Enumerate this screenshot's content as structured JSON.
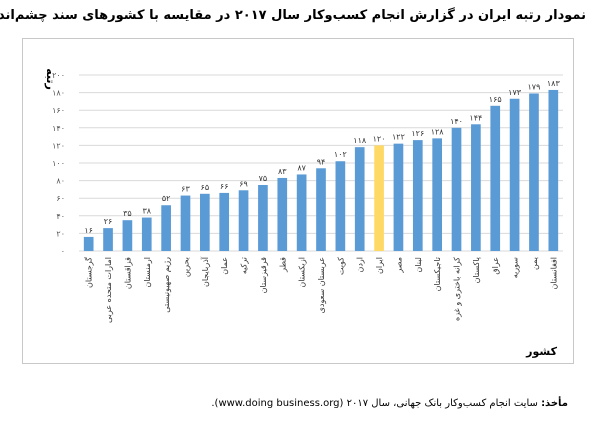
{
  "chart_data": {
    "type": "bar",
    "title": "نمودار رتبه ایران در گزارش انجام کسب‌وکار سال ۲۰۱۷ در مقایسه با کشورهای سند چشم‌انداز",
    "xlabel": "کشور",
    "ylabel": "رتبه",
    "ylim": [
      0,
      200
    ],
    "ytick_labels": [
      "۰",
      "۲۰",
      "۴۰",
      "۶۰",
      "۸۰",
      "۱۰۰",
      "۱۲۰",
      "۱۴۰",
      "۱۶۰",
      "۱۸۰",
      "۲۰۰"
    ],
    "yticks": [
      0,
      20,
      40,
      60,
      80,
      100,
      120,
      140,
      160,
      180,
      200
    ],
    "categories": [
      "گرجستان",
      "امارات متحده عربی",
      "قزاقستان",
      "ارمنستان",
      "رژیم صهیونیستی",
      "بحرین",
      "آذربایجان",
      "عمان",
      "ترکیه",
      "قرقیزستان",
      "قطر",
      "ازبکستان",
      "عربستان سعودی",
      "کویت",
      "اردن",
      "ایران",
      "مصر",
      "لبنان",
      "تاجیکستان",
      "کرانه باختری و غزه",
      "پاکستان",
      "عراق",
      "سوریه",
      "یمن",
      "افغانستان"
    ],
    "values": [
      16,
      26,
      35,
      38,
      52,
      63,
      65,
      66,
      69,
      75,
      83,
      87,
      94,
      102,
      118,
      120,
      122,
      126,
      128,
      140,
      144,
      165,
      173,
      179,
      183
    ],
    "value_labels": [
      "۱۶",
      "۲۶",
      "۳۵",
      "۳۸",
      "۵۲",
      "۶۳",
      "۶۵",
      "۶۶",
      "۶۹",
      "۷۵",
      "۸۳",
      "۸۷",
      "۹۴",
      "۱۰۲",
      "۱۱۸",
      "۱۲۰",
      "۱۲۲",
      "۱۲۶",
      "۱۲۸",
      "۱۴۰",
      "۱۴۴",
      "۱۶۵",
      "۱۷۳",
      "۱۷۹",
      "۱۸۳"
    ],
    "highlight_category": "ایران",
    "colors": {
      "bar": "#5b9bd5",
      "highlight": "#ffd966",
      "grid": "#d9d9d9"
    },
    "grid": true,
    "legend": "none"
  },
  "source": {
    "label": "مأخذ:",
    "text": "سایت انجام کسب‌وکار بانک جهانی، سال ۲۰۱۷ (www.doing business.org)."
  }
}
